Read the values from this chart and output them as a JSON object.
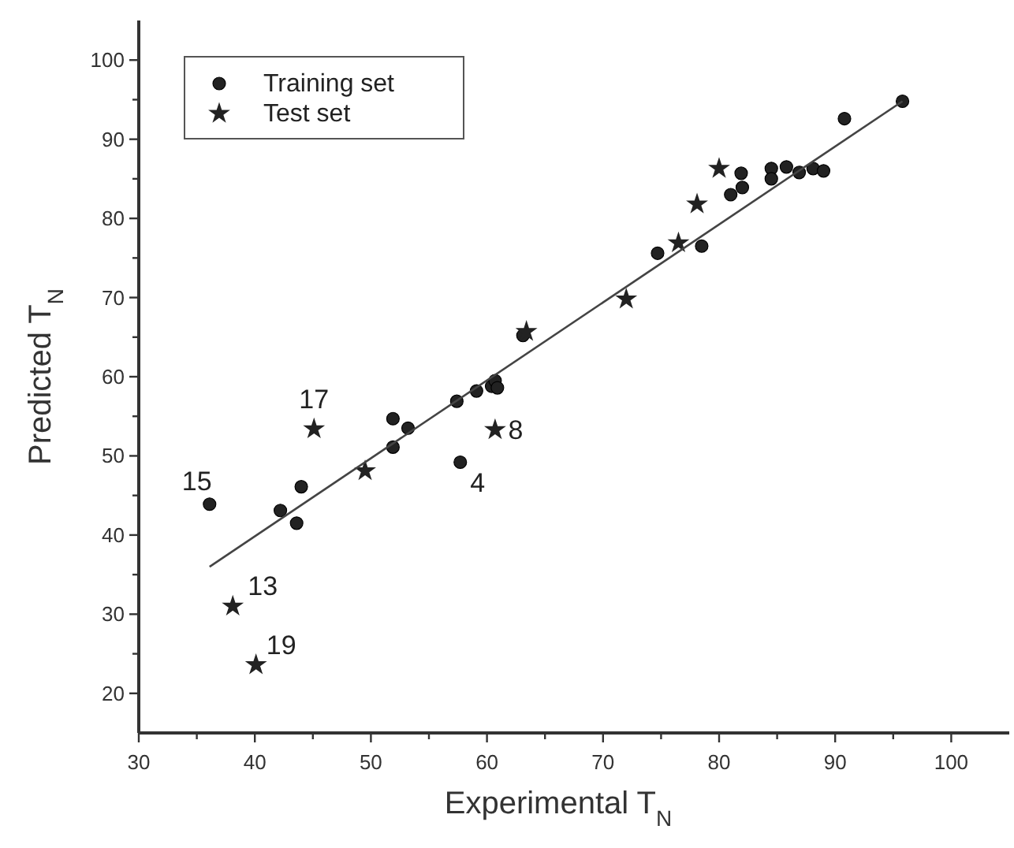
{
  "chart_data": {
    "type": "scatter",
    "xlabel": "Experimental T$_{N}$",
    "ylabel": "Predicted T$_{N}$",
    "xlim": [
      30,
      105
    ],
    "ylim": [
      15,
      105
    ],
    "xticks": [
      30,
      {
        "value": 35,
        "label": null
      },
      40,
      {
        "value": 45,
        "label": null
      },
      50,
      {
        "value": 55,
        "label": null
      },
      60,
      {
        "value": 65,
        "label": null
      },
      70,
      {
        "value": 75,
        "label": null
      },
      80,
      {
        "value": 85,
        "label": null
      },
      90,
      {
        "value": 95,
        "label": null
      },
      100
    ],
    "yticks": [
      20,
      {
        "value": 25,
        "label": null
      },
      30,
      {
        "value": 35,
        "label": null
      },
      40,
      {
        "value": 45,
        "label": null
      },
      50,
      {
        "value": 55,
        "label": null
      },
      60,
      {
        "value": 65,
        "label": null
      },
      70,
      {
        "value": 75,
        "label": null
      },
      80,
      {
        "value": 85,
        "label": null
      },
      90,
      {
        "value": 95,
        "label": null
      },
      100
    ],
    "grid": false,
    "legend": "top left",
    "series": [
      {
        "name": "Training set",
        "type": "scatter",
        "marker": "circle",
        "color": "#222222",
        "x": [
          36.1,
          42.2,
          43.6,
          44.0,
          51.9,
          51.9,
          53.2,
          57.4,
          57.7,
          59.1,
          60.4,
          60.7,
          60.9,
          63.1,
          74.7,
          78.5,
          81.0,
          81.9,
          82.0,
          84.5,
          84.5,
          85.8,
          86.9,
          88.1,
          89.0,
          90.8,
          95.8
        ],
        "values": [
          43.9,
          43.1,
          41.5,
          46.1,
          51.1,
          54.7,
          53.5,
          56.9,
          49.2,
          58.2,
          58.8,
          59.5,
          58.6,
          65.2,
          75.6,
          76.5,
          83.0,
          85.7,
          83.9,
          86.3,
          85.0,
          86.5,
          85.8,
          86.3,
          86.0,
          92.6,
          94.8
        ]
      },
      {
        "name": "Test set",
        "type": "scatter",
        "marker": "star",
        "color": "#222222",
        "x": [
          38.1,
          40.1,
          45.1,
          49.5,
          60.7,
          63.4,
          72.0,
          76.5,
          78.1,
          80.0
        ],
        "values": [
          31.0,
          23.6,
          53.4,
          48.1,
          53.3,
          65.7,
          69.8,
          76.9,
          81.8,
          86.3
        ]
      },
      {
        "type": "line",
        "marker": "none",
        "line_style": "solid",
        "color": "#444444",
        "x": [
          36.1,
          95.8
        ],
        "values": [
          36.0,
          94.8
        ]
      }
    ],
    "annotations": [
      {
        "text": "15",
        "x": 36.1,
        "y": 43.9
      },
      {
        "text": "17",
        "x": 45.1,
        "y": 53.4
      },
      {
        "text": "13",
        "x": 38.1,
        "y": 31.0
      },
      {
        "text": "19",
        "x": 40.1,
        "y": 23.6
      },
      {
        "text": "4",
        "x": 57.7,
        "y": 49.2
      },
      {
        "text": "8",
        "x": 60.7,
        "y": 53.3
      }
    ]
  }
}
